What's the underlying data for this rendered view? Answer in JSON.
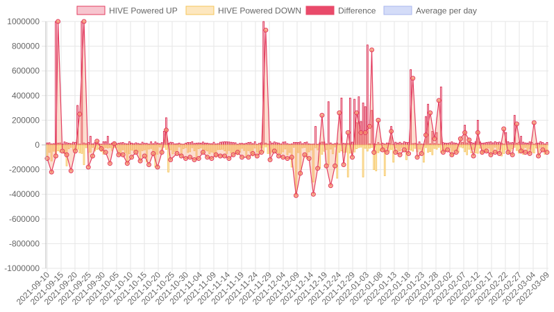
{
  "chart_data": {
    "type": "bar",
    "title": "",
    "xlabel": "",
    "ylabel": "",
    "ylim": [
      -1000000,
      1000000
    ],
    "y_ticks": [
      1000000,
      800000,
      600000,
      400000,
      200000,
      0,
      -200000,
      -400000,
      -600000,
      -800000,
      -1000000
    ],
    "x_tick_labels": [
      "2021-09-10",
      "2021-09-15",
      "2021-09-20",
      "2021-09-25",
      "2021-09-30",
      "2021-10-05",
      "2021-10-10",
      "2021-10-15",
      "2021-10-20",
      "2021-10-25",
      "2021-10-30",
      "2021-11-04",
      "2021-11-09",
      "2021-11-14",
      "2021-11-19",
      "2021-11-24",
      "2021-11-29",
      "2021-12-04",
      "2021-12-09",
      "2021-12-14",
      "2021-12-19",
      "2021-12-24",
      "2021-12-29",
      "2022-01-03",
      "2022-01-08",
      "2022-01-13",
      "2022-01-18",
      "2022-01-23",
      "2022-01-28",
      "2022-02-02",
      "2022-02-07",
      "2022-02-12",
      "2022-02-17",
      "2022-02-22",
      "2022-02-27",
      "2022-03-04",
      "2022-03-09"
    ],
    "days": 181,
    "grid": true,
    "legend_position": "top",
    "legend": [
      {
        "name": "HIVE Powered UP",
        "fill": "#f7c5cf",
        "stroke": "#e33b5f"
      },
      {
        "name": "HIVE Powered DOWN",
        "fill": "#fde7bf",
        "stroke": "#f5c458"
      },
      {
        "name": "Difference",
        "fill": "#e94a6a",
        "stroke": "#e94a6a"
      },
      {
        "name": "Average per day",
        "fill": "#d4dcf8",
        "stroke": "#a9b6ee"
      }
    ],
    "series": [
      {
        "name": "HIVE Powered UP",
        "kind": "bar",
        "color": "#d81b43",
        "spikes": [
          [
            4,
            1100000
          ],
          [
            14,
            320000
          ],
          [
            16,
            1050000
          ],
          [
            20,
            70000
          ],
          [
            28,
            70000
          ],
          [
            54,
            110000
          ],
          [
            55,
            220000
          ],
          [
            100,
            1100000
          ],
          [
            119,
            20000
          ],
          [
            124,
            150000
          ],
          [
            130,
            350000
          ],
          [
            136,
            380000
          ],
          [
            140,
            380000
          ],
          [
            142,
            370000
          ],
          [
            143,
            180000
          ],
          [
            144,
            390000
          ],
          [
            145,
            190000
          ],
          [
            146,
            340000
          ],
          [
            147,
            310000
          ],
          [
            148,
            810000
          ],
          [
            150,
            280000
          ],
          [
            159,
            150000
          ],
          [
            168,
            610000
          ],
          [
            175,
            230000
          ],
          [
            176,
            330000
          ],
          [
            178,
            110000
          ],
          [
            180,
            100000
          ],
          [
            182,
            470000
          ],
          [
            193,
            160000
          ],
          [
            199,
            200000
          ],
          [
            212,
            100000
          ],
          [
            216,
            240000
          ],
          [
            219,
            70000
          ]
        ],
        "baseline": 18000
      },
      {
        "name": "HIVE Powered DOWN",
        "kind": "bar",
        "color": "#f5c458",
        "spikes": [
          [
            0,
            -90000
          ],
          [
            2,
            -130000
          ],
          [
            6,
            -60000
          ],
          [
            9,
            -170000
          ],
          [
            13,
            -50000
          ],
          [
            17,
            -160000
          ],
          [
            22,
            -50000
          ],
          [
            37,
            -140000
          ],
          [
            43,
            -130000
          ],
          [
            46,
            -140000
          ],
          [
            50,
            -180000
          ],
          [
            56,
            -220000
          ],
          [
            62,
            -90000
          ],
          [
            69,
            -110000
          ],
          [
            78,
            -100000
          ],
          [
            88,
            -80000
          ],
          [
            92,
            -100000
          ],
          [
            95,
            -90000
          ],
          [
            104,
            -60000
          ],
          [
            108,
            -70000
          ],
          [
            111,
            -80000
          ],
          [
            113,
            -180000
          ],
          [
            115,
            -400000
          ],
          [
            117,
            -230000
          ],
          [
            120,
            -110000
          ],
          [
            123,
            -300000
          ],
          [
            126,
            -190000
          ],
          [
            130,
            -160000
          ],
          [
            134,
            -270000
          ],
          [
            139,
            -260000
          ],
          [
            146,
            -260000
          ],
          [
            151,
            -200000
          ],
          [
            152,
            -210000
          ],
          [
            156,
            -250000
          ],
          [
            160,
            -140000
          ],
          [
            166,
            -120000
          ],
          [
            174,
            -140000
          ],
          [
            178,
            -80000
          ],
          [
            182,
            -60000
          ],
          [
            187,
            -90000
          ],
          [
            194,
            -80000
          ],
          [
            205,
            -70000
          ],
          [
            210,
            -90000
          ],
          [
            219,
            -60000
          ]
        ],
        "baseline": -55000
      },
      {
        "name": "Difference",
        "kind": "line",
        "color": "#e33b5f",
        "fill": "#f7c5cf",
        "points": [
          [
            0,
            -110000
          ],
          [
            2,
            -220000
          ],
          [
            4,
            -90000
          ],
          [
            5,
            1000000
          ],
          [
            7,
            -50000
          ],
          [
            9,
            -80000
          ],
          [
            11,
            -210000
          ],
          [
            13,
            -50000
          ],
          [
            15,
            250000
          ],
          [
            17,
            1000000
          ],
          [
            19,
            -180000
          ],
          [
            21,
            -90000
          ],
          [
            23,
            30000
          ],
          [
            25,
            -30000
          ],
          [
            27,
            -60000
          ],
          [
            29,
            -150000
          ],
          [
            31,
            10000
          ],
          [
            33,
            -80000
          ],
          [
            35,
            -80000
          ],
          [
            37,
            -150000
          ],
          [
            39,
            -100000
          ],
          [
            41,
            -60000
          ],
          [
            43,
            -130000
          ],
          [
            45,
            -90000
          ],
          [
            47,
            -160000
          ],
          [
            49,
            -70000
          ],
          [
            51,
            -180000
          ],
          [
            53,
            -60000
          ],
          [
            55,
            120000
          ],
          [
            57,
            -120000
          ],
          [
            60,
            -70000
          ],
          [
            62,
            -90000
          ],
          [
            64,
            -110000
          ],
          [
            66,
            -100000
          ],
          [
            68,
            -120000
          ],
          [
            70,
            -110000
          ],
          [
            72,
            -60000
          ],
          [
            74,
            -100000
          ],
          [
            76,
            -110000
          ],
          [
            78,
            -80000
          ],
          [
            80,
            -90000
          ],
          [
            82,
            -90000
          ],
          [
            84,
            -110000
          ],
          [
            86,
            -80000
          ],
          [
            88,
            -60000
          ],
          [
            90,
            -100000
          ],
          [
            93,
            -100000
          ],
          [
            95,
            -70000
          ],
          [
            97,
            -90000
          ],
          [
            99,
            -60000
          ],
          [
            101,
            930000
          ],
          [
            103,
            -120000
          ],
          [
            105,
            -50000
          ],
          [
            107,
            -90000
          ],
          [
            109,
            -100000
          ],
          [
            111,
            -110000
          ],
          [
            113,
            -100000
          ],
          [
            115,
            -410000
          ],
          [
            117,
            -230000
          ],
          [
            119,
            -80000
          ],
          [
            121,
            -110000
          ],
          [
            123,
            -400000
          ],
          [
            125,
            -190000
          ],
          [
            127,
            240000
          ],
          [
            129,
            -170000
          ],
          [
            131,
            -330000
          ],
          [
            133,
            -170000
          ],
          [
            135,
            260000
          ],
          [
            137,
            -160000
          ],
          [
            139,
            100000
          ],
          [
            141,
            -100000
          ],
          [
            143,
            260000
          ],
          [
            145,
            100000
          ],
          [
            147,
            100000
          ],
          [
            149,
            150000
          ],
          [
            150,
            770000
          ],
          [
            151,
            -60000
          ],
          [
            153,
            200000
          ],
          [
            155,
            -40000
          ],
          [
            157,
            -60000
          ],
          [
            159,
            110000
          ],
          [
            161,
            -60000
          ],
          [
            163,
            -80000
          ],
          [
            165,
            -40000
          ],
          [
            167,
            -70000
          ],
          [
            169,
            540000
          ],
          [
            171,
            -100000
          ],
          [
            173,
            -70000
          ],
          [
            175,
            80000
          ],
          [
            177,
            260000
          ],
          [
            179,
            50000
          ],
          [
            181,
            360000
          ],
          [
            183,
            -60000
          ],
          [
            185,
            -40000
          ],
          [
            187,
            -80000
          ],
          [
            189,
            -60000
          ],
          [
            191,
            50000
          ],
          [
            193,
            100000
          ],
          [
            195,
            40000
          ],
          [
            197,
            -90000
          ],
          [
            199,
            100000
          ],
          [
            201,
            -60000
          ],
          [
            203,
            -50000
          ],
          [
            205,
            -80000
          ],
          [
            207,
            -60000
          ],
          [
            209,
            -70000
          ],
          [
            211,
            130000
          ],
          [
            213,
            -60000
          ],
          [
            215,
            -80000
          ],
          [
            217,
            170000
          ],
          [
            219,
            -50000
          ],
          [
            221,
            -60000
          ],
          [
            223,
            -70000
          ],
          [
            225,
            180000
          ],
          [
            227,
            -90000
          ],
          [
            229,
            -40000
          ],
          [
            231,
            -60000
          ]
        ]
      }
    ]
  }
}
